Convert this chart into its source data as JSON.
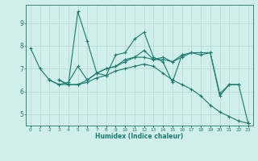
{
  "xlabel": "Humidex (Indice chaleur)",
  "x": [
    0,
    1,
    2,
    3,
    4,
    5,
    6,
    7,
    8,
    9,
    10,
    11,
    12,
    13,
    14,
    15,
    16,
    17,
    18,
    19,
    20,
    21,
    22,
    23
  ],
  "lines": [
    [
      7.9,
      7.0,
      6.5,
      6.3,
      6.3,
      9.5,
      8.2,
      6.8,
      6.7,
      7.6,
      7.7,
      8.3,
      8.6,
      7.5,
      7.3,
      6.4,
      7.6,
      7.7,
      7.6,
      7.7,
      5.8,
      6.3,
      6.3,
      null
    ],
    [
      null,
      null,
      6.5,
      6.3,
      6.4,
      7.1,
      6.5,
      6.8,
      7.0,
      7.1,
      7.4,
      7.5,
      7.8,
      7.4,
      7.5,
      7.3,
      7.6,
      null,
      null,
      null,
      null,
      null,
      null,
      null
    ],
    [
      null,
      null,
      null,
      6.5,
      6.3,
      6.3,
      6.5,
      6.8,
      7.0,
      7.1,
      7.3,
      7.5,
      7.5,
      7.4,
      7.4,
      7.3,
      7.5,
      7.7,
      7.7,
      7.7,
      5.9,
      6.3,
      6.3,
      4.6
    ],
    [
      null,
      null,
      null,
      6.5,
      6.3,
      6.3,
      6.4,
      6.6,
      6.7,
      6.9,
      7.0,
      7.1,
      7.2,
      7.1,
      6.8,
      6.5,
      6.3,
      6.1,
      5.8,
      5.4,
      5.1,
      4.9,
      4.7,
      4.6
    ]
  ],
  "line_color": "#1a7a6e",
  "bg_color": "#d0eeeb",
  "grid_color": "#b8d8d5",
  "ylim": [
    4.5,
    9.8
  ],
  "yticks": [
    5,
    6,
    7,
    8,
    9
  ],
  "marker": "+",
  "markersize": 3.5,
  "linewidth": 0.8,
  "figsize": [
    3.2,
    2.0
  ],
  "dpi": 100
}
